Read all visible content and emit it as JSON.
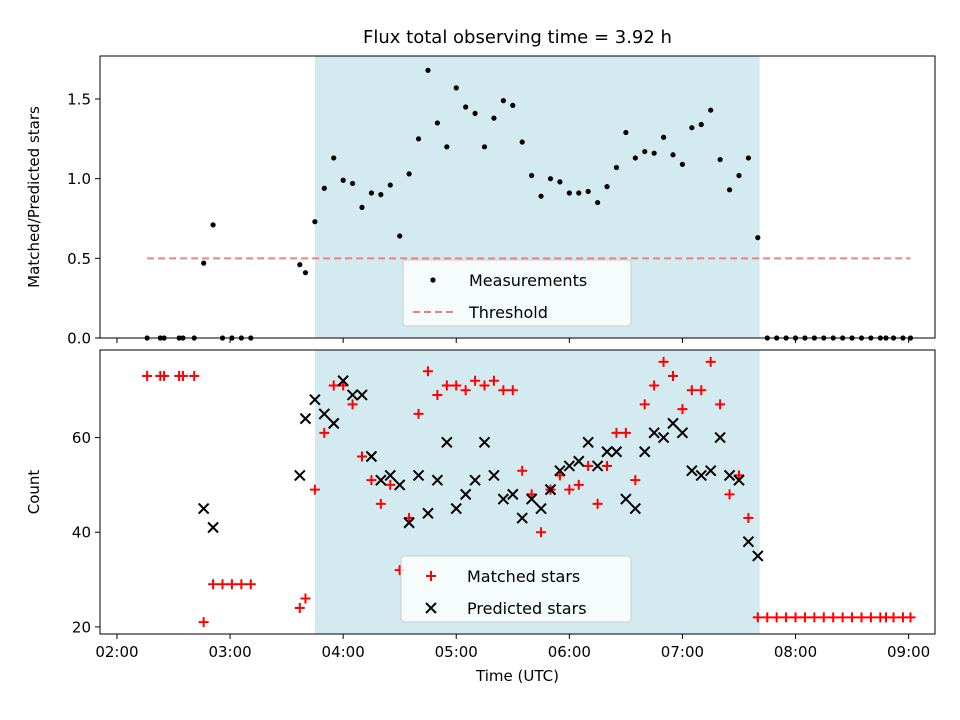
{
  "chart_data": [
    {
      "type": "scatter",
      "title": "Flux total observing time = 3.92 h",
      "ylabel": "Matched/Predicted stars",
      "xlabel": "",
      "xlim": [
        "01:51",
        "09:14"
      ],
      "ylim": [
        0,
        1.77
      ],
      "yticks": [
        0.0,
        0.5,
        1.0,
        1.5
      ],
      "ytick_labels": [
        "0.0",
        "0.5",
        "1.0",
        "1.5"
      ],
      "grid": false,
      "legend_position": "bottom-center",
      "shaded_span": {
        "from": "03:45",
        "to": "07:41",
        "color": "#d3eaf0"
      },
      "series": [
        {
          "name": "Measurements",
          "marker": "dot",
          "color": "#000000",
          "points": [
            [
              "02:16",
              0
            ],
            [
              "02:23",
              0
            ],
            [
              "02:25",
              0
            ],
            [
              "02:33",
              0
            ],
            [
              "02:35",
              0
            ],
            [
              "02:41",
              0
            ],
            [
              "02:46",
              0.47
            ],
            [
              "02:51",
              0.71
            ],
            [
              "02:56",
              0
            ],
            [
              "03:01",
              0
            ],
            [
              "03:06",
              0
            ],
            [
              "03:11",
              0
            ],
            [
              "03:37",
              0.46
            ],
            [
              "03:40",
              0.41
            ],
            [
              "03:45",
              0.73
            ],
            [
              "03:50",
              0.94
            ],
            [
              "03:55",
              1.13
            ],
            [
              "04:00",
              0.99
            ],
            [
              "04:05",
              0.97
            ],
            [
              "04:10",
              0.82
            ],
            [
              "04:15",
              0.91
            ],
            [
              "04:20",
              0.9
            ],
            [
              "04:25",
              0.96
            ],
            [
              "04:30",
              0.64
            ],
            [
              "04:35",
              1.03
            ],
            [
              "04:40",
              1.25
            ],
            [
              "04:45",
              1.68
            ],
            [
              "04:50",
              1.35
            ],
            [
              "04:55",
              1.2
            ],
            [
              "05:00",
              1.57
            ],
            [
              "05:05",
              1.45
            ],
            [
              "05:10",
              1.41
            ],
            [
              "05:15",
              1.2
            ],
            [
              "05:20",
              1.38
            ],
            [
              "05:25",
              1.49
            ],
            [
              "05:30",
              1.46
            ],
            [
              "05:35",
              1.23
            ],
            [
              "05:40",
              1.02
            ],
            [
              "05:45",
              0.89
            ],
            [
              "05:50",
              1.0
            ],
            [
              "05:55",
              0.98
            ],
            [
              "06:00",
              0.91
            ],
            [
              "06:05",
              0.91
            ],
            [
              "06:10",
              0.92
            ],
            [
              "06:15",
              0.85
            ],
            [
              "06:20",
              0.95
            ],
            [
              "06:25",
              1.07
            ],
            [
              "06:30",
              1.29
            ],
            [
              "06:35",
              1.13
            ],
            [
              "06:40",
              1.17
            ],
            [
              "06:45",
              1.16
            ],
            [
              "06:50",
              1.26
            ],
            [
              "06:55",
              1.15
            ],
            [
              "07:00",
              1.09
            ],
            [
              "07:05",
              1.32
            ],
            [
              "07:10",
              1.34
            ],
            [
              "07:15",
              1.43
            ],
            [
              "07:20",
              1.12
            ],
            [
              "07:25",
              0.93
            ],
            [
              "07:30",
              1.02
            ],
            [
              "07:35",
              1.13
            ],
            [
              "07:40",
              0.63
            ],
            [
              "07:45",
              0
            ],
            [
              "07:50",
              0
            ],
            [
              "07:55",
              0
            ],
            [
              "08:00",
              0
            ],
            [
              "08:05",
              0
            ],
            [
              "08:10",
              0
            ],
            [
              "08:15",
              0
            ],
            [
              "08:20",
              0
            ],
            [
              "08:25",
              0
            ],
            [
              "08:30",
              0
            ],
            [
              "08:35",
              0
            ],
            [
              "08:40",
              0
            ],
            [
              "08:45",
              0
            ],
            [
              "08:48",
              0
            ],
            [
              "08:52",
              0
            ],
            [
              "08:57",
              0
            ],
            [
              "09:01",
              0
            ]
          ]
        },
        {
          "name": "Threshold",
          "marker": "dashed-line",
          "color": "#f08080",
          "points": [
            [
              "02:16",
              0.5
            ],
            [
              "09:01",
              0.5
            ]
          ]
        }
      ]
    },
    {
      "type": "scatter",
      "title": "",
      "ylabel": "Count",
      "xlabel": "Time (UTC)",
      "xlim": [
        "01:51",
        "09:14"
      ],
      "ylim": [
        18.5,
        78.5
      ],
      "yticks": [
        20,
        40,
        60
      ],
      "ytick_labels": [
        "20",
        "40",
        "60"
      ],
      "xticks": [
        "02:00",
        "03:00",
        "04:00",
        "05:00",
        "06:00",
        "07:00",
        "08:00",
        "09:00"
      ],
      "xtick_labels": [
        "02:00",
        "03:00",
        "04:00",
        "05:00",
        "06:00",
        "07:00",
        "08:00",
        "09:00"
      ],
      "grid": false,
      "legend_position": "bottom-center",
      "shaded_span": {
        "from": "03:45",
        "to": "07:41",
        "color": "#d3eaf0"
      },
      "series": [
        {
          "name": "Matched stars",
          "marker": "plus",
          "color": "#ff0000",
          "points": [
            [
              "02:16",
              73
            ],
            [
              "02:23",
              73
            ],
            [
              "02:25",
              73
            ],
            [
              "02:33",
              73
            ],
            [
              "02:35",
              73
            ],
            [
              "02:41",
              73
            ],
            [
              "02:46",
              21
            ],
            [
              "02:51",
              29
            ],
            [
              "02:56",
              29
            ],
            [
              "03:01",
              29
            ],
            [
              "03:06",
              29
            ],
            [
              "03:11",
              29
            ],
            [
              "03:37",
              24
            ],
            [
              "03:40",
              26
            ],
            [
              "03:45",
              49
            ],
            [
              "03:50",
              61
            ],
            [
              "03:55",
              71
            ],
            [
              "04:00",
              71
            ],
            [
              "04:05",
              67
            ],
            [
              "04:10",
              56
            ],
            [
              "04:15",
              51
            ],
            [
              "04:20",
              46
            ],
            [
              "04:25",
              50
            ],
            [
              "04:30",
              32
            ],
            [
              "04:35",
              43
            ],
            [
              "04:40",
              65
            ],
            [
              "04:45",
              74
            ],
            [
              "04:50",
              69
            ],
            [
              "04:55",
              71
            ],
            [
              "05:00",
              71
            ],
            [
              "05:05",
              70
            ],
            [
              "05:10",
              72
            ],
            [
              "05:15",
              71
            ],
            [
              "05:20",
              72
            ],
            [
              "05:25",
              70
            ],
            [
              "05:30",
              70
            ],
            [
              "05:35",
              53
            ],
            [
              "05:40",
              48
            ],
            [
              "05:45",
              40
            ],
            [
              "05:50",
              49
            ],
            [
              "05:55",
              52
            ],
            [
              "06:00",
              49
            ],
            [
              "06:05",
              50
            ],
            [
              "06:10",
              54
            ],
            [
              "06:15",
              46
            ],
            [
              "06:20",
              54
            ],
            [
              "06:25",
              61
            ],
            [
              "06:30",
              61
            ],
            [
              "06:35",
              51
            ],
            [
              "06:40",
              67
            ],
            [
              "06:45",
              71
            ],
            [
              "06:50",
              76
            ],
            [
              "06:55",
              73
            ],
            [
              "07:00",
              66
            ],
            [
              "07:05",
              70
            ],
            [
              "07:10",
              70
            ],
            [
              "07:15",
              76
            ],
            [
              "07:20",
              67
            ],
            [
              "07:25",
              48
            ],
            [
              "07:30",
              52
            ],
            [
              "07:35",
              43
            ],
            [
              "07:40",
              22
            ],
            [
              "07:45",
              22
            ],
            [
              "07:50",
              22
            ],
            [
              "07:55",
              22
            ],
            [
              "08:00",
              22
            ],
            [
              "08:05",
              22
            ],
            [
              "08:10",
              22
            ],
            [
              "08:15",
              22
            ],
            [
              "08:20",
              22
            ],
            [
              "08:25",
              22
            ],
            [
              "08:30",
              22
            ],
            [
              "08:35",
              22
            ],
            [
              "08:40",
              22
            ],
            [
              "08:45",
              22
            ],
            [
              "08:48",
              22
            ],
            [
              "08:52",
              22
            ],
            [
              "08:57",
              22
            ],
            [
              "09:01",
              22
            ]
          ]
        },
        {
          "name": "Predicted stars",
          "marker": "x",
          "color": "#000000",
          "points": [
            [
              "02:46",
              45
            ],
            [
              "02:51",
              41
            ],
            [
              "03:37",
              52
            ],
            [
              "03:40",
              64
            ],
            [
              "03:45",
              68
            ],
            [
              "03:50",
              65
            ],
            [
              "03:55",
              63
            ],
            [
              "04:00",
              72
            ],
            [
              "04:05",
              69
            ],
            [
              "04:10",
              69
            ],
            [
              "04:15",
              56
            ],
            [
              "04:20",
              51
            ],
            [
              "04:25",
              52
            ],
            [
              "04:30",
              50
            ],
            [
              "04:35",
              42
            ],
            [
              "04:40",
              52
            ],
            [
              "04:45",
              44
            ],
            [
              "04:50",
              51
            ],
            [
              "04:55",
              59
            ],
            [
              "05:00",
              45
            ],
            [
              "05:05",
              48
            ],
            [
              "05:10",
              51
            ],
            [
              "05:15",
              59
            ],
            [
              "05:20",
              52
            ],
            [
              "05:25",
              47
            ],
            [
              "05:30",
              48
            ],
            [
              "05:35",
              43
            ],
            [
              "05:40",
              47
            ],
            [
              "05:45",
              45
            ],
            [
              "05:50",
              49
            ],
            [
              "05:55",
              53
            ],
            [
              "06:00",
              54
            ],
            [
              "06:05",
              55
            ],
            [
              "06:10",
              59
            ],
            [
              "06:15",
              54
            ],
            [
              "06:20",
              57
            ],
            [
              "06:25",
              57
            ],
            [
              "06:30",
              47
            ],
            [
              "06:35",
              45
            ],
            [
              "06:40",
              57
            ],
            [
              "06:45",
              61
            ],
            [
              "06:50",
              60
            ],
            [
              "06:55",
              63
            ],
            [
              "07:00",
              61
            ],
            [
              "07:05",
              53
            ],
            [
              "07:10",
              52
            ],
            [
              "07:15",
              53
            ],
            [
              "07:20",
              60
            ],
            [
              "07:25",
              52
            ],
            [
              "07:30",
              51
            ],
            [
              "07:35",
              38
            ],
            [
              "07:40",
              35
            ]
          ]
        }
      ]
    }
  ]
}
